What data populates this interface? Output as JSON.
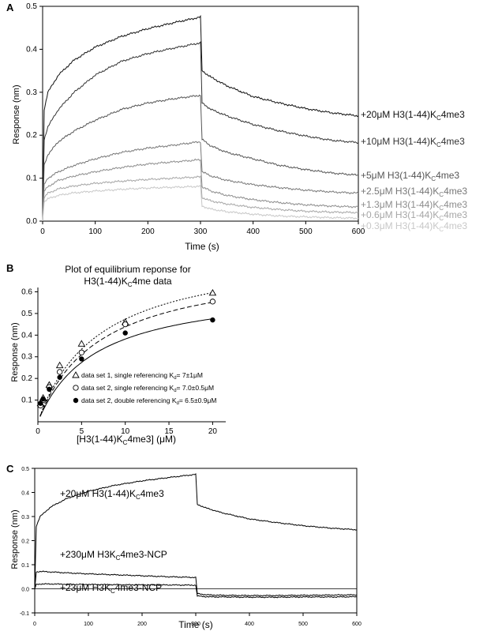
{
  "chart_data": [
    {
      "panel": "A",
      "type": "line",
      "xlabel": "Time (s)",
      "ylabel": "Response (nm)",
      "xlim": [
        0,
        600
      ],
      "ylim": [
        0,
        0.5
      ],
      "xticks": [
        "0",
        "100",
        "200",
        "300",
        "400",
        "500",
        "600"
      ],
      "yticks": [
        "0.0",
        "0.1",
        "0.2",
        "0.3",
        "0.4",
        "0.5"
      ],
      "x": [
        0,
        3,
        10,
        30,
        60,
        100,
        150,
        200,
        250,
        300,
        303,
        320,
        350,
        400,
        450,
        500,
        550,
        600
      ],
      "series": [
        {
          "name": "+20μM H3(1-44)K",
          "sub": "C",
          "suffix": "4me3",
          "color": "#111111",
          "values": [
            0,
            0.26,
            0.3,
            0.34,
            0.375,
            0.405,
            0.43,
            0.448,
            0.462,
            0.475,
            0.35,
            0.335,
            0.315,
            0.29,
            0.275,
            0.262,
            0.252,
            0.245
          ]
        },
        {
          "name": "+10μM H3(1-44)K",
          "sub": "C",
          "suffix": "4me3",
          "color": "#333333",
          "values": [
            0,
            0.19,
            0.22,
            0.26,
            0.3,
            0.34,
            0.372,
            0.39,
            0.403,
            0.415,
            0.275,
            0.26,
            0.245,
            0.225,
            0.21,
            0.198,
            0.188,
            0.183
          ]
        },
        {
          "name": "+5μM H3(1-44)K",
          "sub": "C",
          "suffix": "4me3",
          "color": "#555555",
          "values": [
            0,
            0.13,
            0.155,
            0.185,
            0.21,
            0.235,
            0.26,
            0.275,
            0.285,
            0.293,
            0.19,
            0.175,
            0.16,
            0.145,
            0.13,
            0.12,
            0.112,
            0.107
          ]
        },
        {
          "name": "+2.5μM H3(1-44)K",
          "sub": "C",
          "suffix": "4me3",
          "color": "#777777",
          "values": [
            0,
            0.085,
            0.1,
            0.115,
            0.13,
            0.145,
            0.16,
            0.17,
            0.177,
            0.185,
            0.115,
            0.105,
            0.095,
            0.085,
            0.078,
            0.072,
            0.068,
            0.065
          ]
        },
        {
          "name": "+1.3μM H3(1-44)K",
          "sub": "C",
          "suffix": "4me3",
          "color": "#8c8c8c",
          "values": [
            0,
            0.07,
            0.08,
            0.095,
            0.105,
            0.115,
            0.125,
            0.133,
            0.138,
            0.143,
            0.08,
            0.07,
            0.06,
            0.05,
            0.043,
            0.038,
            0.035,
            0.033
          ]
        },
        {
          "name": "+0.6μM H3(1-44)K",
          "sub": "C",
          "suffix": "4me3",
          "color": "#a6a6a6",
          "values": [
            0,
            0.055,
            0.065,
            0.075,
            0.082,
            0.088,
            0.093,
            0.097,
            0.1,
            0.103,
            0.055,
            0.047,
            0.04,
            0.032,
            0.027,
            0.023,
            0.021,
            0.02
          ]
        },
        {
          "name": "+0.3μM H3(1-44)K",
          "sub": "C",
          "suffix": "4me3",
          "color": "#c8c8c8",
          "values": [
            0,
            0.045,
            0.052,
            0.06,
            0.066,
            0.07,
            0.074,
            0.077,
            0.079,
            0.081,
            0.035,
            0.028,
            0.022,
            0.016,
            0.012,
            0.01,
            0.008,
            0.007
          ]
        }
      ]
    },
    {
      "panel": "B",
      "type": "scatter",
      "title_line1": "Plot of equilibrium reponse for",
      "title_line2_pre": "H3(1-44)K",
      "title_line2_sub": "C",
      "title_line2_post": "4me data",
      "xlabel_pre": "[H3(1-44)K",
      "xlabel_sub": "C",
      "xlabel_post": "4me3] (μM)",
      "ylabel": "Response (nm)",
      "xlim": [
        0,
        21.5
      ],
      "ylim": [
        0,
        0.62
      ],
      "xticks": [
        "0",
        "5",
        "10",
        "15",
        "20"
      ],
      "yticks": [
        "0.1",
        "0.2",
        "0.3",
        "0.4",
        "0.5",
        "0.6"
      ],
      "series": [
        {
          "name": "data set 1, single referencing K",
          "sub": "d",
          "kd": "= 7±1μM",
          "marker": "triangle",
          "line": "dotted",
          "x": [
            0.3,
            0.6,
            1.3,
            2.5,
            5,
            10,
            20
          ],
          "values": [
            0.085,
            0.11,
            0.17,
            0.26,
            0.36,
            0.46,
            0.595
          ],
          "fit": {
            "bmax": 0.805,
            "kd": 7
          }
        },
        {
          "name": "data set 2, single referencing K",
          "sub": "d",
          "kd": "= 7.0±0.5μM",
          "marker": "circle-open",
          "line": "dashed",
          "x": [
            0.3,
            0.6,
            1.3,
            2.5,
            5,
            10,
            20
          ],
          "values": [
            0.075,
            0.1,
            0.16,
            0.23,
            0.32,
            0.45,
            0.555
          ],
          "fit": {
            "bmax": 0.745,
            "kd": 7
          }
        },
        {
          "name": "data set 2, double referencing K",
          "sub": "d",
          "kd": "= 6.5±0.9μM",
          "marker": "circle-filled",
          "line": "solid",
          "x": [
            0.3,
            0.6,
            1.3,
            2.5,
            5,
            10,
            20
          ],
          "values": [
            0.085,
            0.105,
            0.15,
            0.205,
            0.29,
            0.41,
            0.47
          ],
          "fit": {
            "bmax": 0.63,
            "kd": 6.5
          }
        }
      ]
    },
    {
      "panel": "C",
      "type": "line",
      "xlabel": "Time (s)",
      "ylabel": "Response (nm)",
      "xlim": [
        0,
        600
      ],
      "ylim": [
        -0.1,
        0.5
      ],
      "xticks": [
        "0",
        "100",
        "200",
        "300",
        "400",
        "500",
        "600"
      ],
      "yticks": [
        "-0.1",
        "0.0",
        "0.1",
        "0.2",
        "0.3",
        "0.4",
        "0.5"
      ],
      "x": [
        0,
        3,
        10,
        30,
        60,
        100,
        150,
        200,
        250,
        300,
        303,
        320,
        350,
        400,
        450,
        500,
        550,
        600
      ],
      "series": [
        {
          "name": "+20μM H3(1-44)K",
          "sub": "C",
          "suffix": "4me3",
          "values": [
            0,
            0.26,
            0.3,
            0.34,
            0.375,
            0.405,
            0.43,
            0.448,
            0.462,
            0.475,
            0.35,
            0.335,
            0.315,
            0.29,
            0.275,
            0.262,
            0.252,
            0.245
          ]
        },
        {
          "name": "+230μM H3K",
          "sub": "C",
          "suffix": "4me3-NCP",
          "values": [
            0,
            0.07,
            0.072,
            0.07,
            0.066,
            0.062,
            0.058,
            0.054,
            0.05,
            0.047,
            -0.02,
            -0.025,
            -0.027,
            -0.028,
            -0.028,
            -0.027,
            -0.026,
            -0.025
          ]
        },
        {
          "name": "+23μM H3K",
          "sub": "C",
          "suffix": "4me3-NCP",
          "values": [
            0,
            0.018,
            0.02,
            0.02,
            0.019,
            0.018,
            0.017,
            0.016,
            0.016,
            0.015,
            -0.03,
            -0.033,
            -0.034,
            -0.035,
            -0.035,
            -0.034,
            -0.034,
            -0.033
          ]
        }
      ]
    }
  ],
  "panel_letters": [
    "A",
    "B",
    "C"
  ]
}
